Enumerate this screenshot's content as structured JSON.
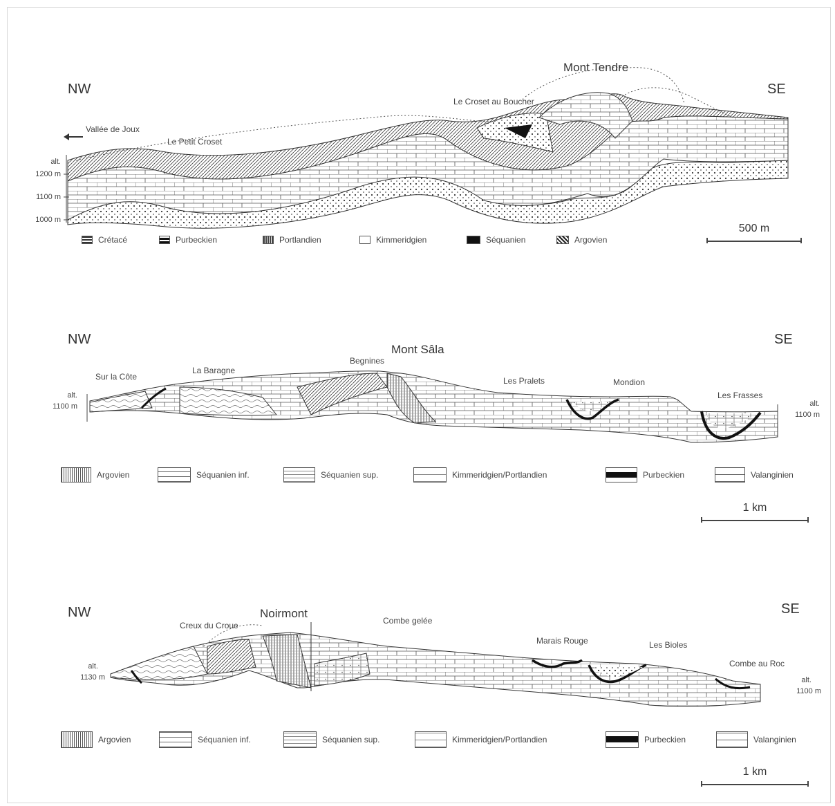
{
  "section1": {
    "dir_left": "NW",
    "dir_right": "SE",
    "peak": "Mont Tendre",
    "places": {
      "vallee": "Vallée de Joux",
      "petit_croset": "Le Petit Croset",
      "croset_boucher": "Le Croset au Boucher"
    },
    "alt_label": "alt.",
    "alt_ticks": [
      "1200 m",
      "1100 m",
      "1000 m"
    ],
    "legend": [
      "Crétacé",
      "Purbeckien",
      "Portlandien",
      "Kimmeridgien",
      "Séquanien",
      "Argovien"
    ],
    "scale": "500 m"
  },
  "section2": {
    "dir_left": "NW",
    "dir_right": "SE",
    "peak": "Mont Sâla",
    "places": {
      "sur_la_cote": "Sur la Côte",
      "la_baragne": "La Baragne",
      "begnines": "Begnines",
      "les_pralets": "Les Pralets",
      "mondion": "Mondion",
      "les_frasses": "Les Frasses"
    },
    "alt_left_1": "alt.",
    "alt_left_2": "1100 m",
    "alt_right_1": "alt.",
    "alt_right_2": "1100 m",
    "legend": [
      "Argovien",
      "Séquanien inf.",
      "Séquanien sup.",
      "Kimmeridgien/Portlandien",
      "Purbeckien",
      "Valanginien"
    ],
    "scale": "1 km"
  },
  "section3": {
    "dir_left": "NW",
    "dir_right": "SE",
    "peak": "Noirmont",
    "places": {
      "creux_du_croue": "Creux du Croue",
      "combe_gelee": "Combe gelée",
      "marais_rouge": "Marais Rouge",
      "les_bioles": "Les Bioles",
      "combe_au_roc": "Combe au Roc"
    },
    "alt_left_1": "alt.",
    "alt_left_2": "1130 m",
    "alt_right_1": "alt.",
    "alt_right_2": "1100 m",
    "legend": [
      "Argovien",
      "Séquanien inf.",
      "Séquanien sup.",
      "Kimmeridgien/Portlandien",
      "Purbeckien",
      "Valanginien"
    ],
    "scale": "1 km"
  },
  "colors": {
    "line": "#333333",
    "fill_light": "#f4f4f4",
    "fill_dark": "#111111"
  }
}
